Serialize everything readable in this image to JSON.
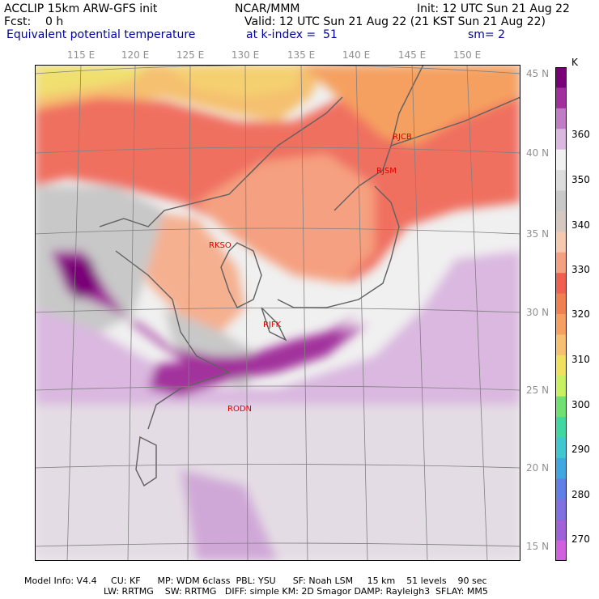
{
  "header": {
    "line1_left": "ACCLIP 15km ARW-GFS init",
    "line1_center": "NCAR/MMM",
    "line1_right": "Init: 12 UTC Sun 21 Aug 22",
    "line2_left": "Fcst:    0 h",
    "line2_right": "Valid: 12 UTC Sun 21 Aug 22 (21 KST Sun 21 Aug 22)",
    "line3_left": "Equivalent potential temperature",
    "line3_center": "at k-index =  51",
    "line3_right": "sm= 2"
  },
  "map": {
    "lon_labels": [
      "115 E",
      "120 E",
      "125 E",
      "130 E",
      "135 E",
      "140 E",
      "145 E",
      "150 E"
    ],
    "lat_labels": [
      "45 N",
      "40 N",
      "35 N",
      "30 N",
      "25 N",
      "20 N",
      "15 N"
    ],
    "stations": [
      "RJCB",
      "RJSM",
      "RKSO",
      "RJFK",
      "RODN"
    ],
    "background_color": "#f0f0f0"
  },
  "colorbar": {
    "unit": "K",
    "labels": [
      "360",
      "350",
      "340",
      "330",
      "320",
      "310",
      "300",
      "290",
      "280",
      "270"
    ],
    "colors": [
      "#7a0078",
      "#a2309c",
      "#c07cc4",
      "#dab8e0",
      "#f0f0f0",
      "#dcdcdc",
      "#c8c8c8",
      "#d4c8c0",
      "#f5c8b0",
      "#f5a080",
      "#f06050",
      "#f08050",
      "#f5a060",
      "#f5c070",
      "#f0e060",
      "#c8f060",
      "#70e070",
      "#40d8a0",
      "#40c8d0",
      "#40a8e0",
      "#6080e8",
      "#8070e0",
      "#a060d8",
      "#d060e0"
    ]
  },
  "footer": {
    "line1": "Model Info: V4.4     CU: KF      MP: WDM 6class  PBL: YSU      SF: Noah LSM     15 km    51 levels    90 sec",
    "line2": "LW: RRTMG    SW: RRTMG   DIFF: simple KM: 2D Smagor DAMP: Rayleigh3  SFLAY: MM5"
  }
}
